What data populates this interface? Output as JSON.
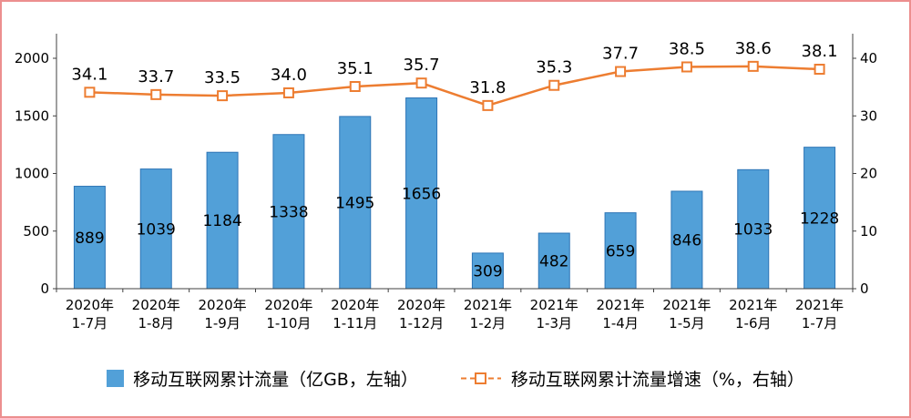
{
  "frame_color": "#ec8f8f",
  "chart_data": {
    "type": "bar+line",
    "title": "",
    "categories": [
      [
        "2020年",
        "1-7月"
      ],
      [
        "2020年",
        "1-8月"
      ],
      [
        "2020年",
        "1-9月"
      ],
      [
        "2020年",
        "1-10月"
      ],
      [
        "2020年",
        "1-11月"
      ],
      [
        "2020年",
        "1-12月"
      ],
      [
        "2021年",
        "1-2月"
      ],
      [
        "2021年",
        "1-3月"
      ],
      [
        "2021年",
        "1-4月"
      ],
      [
        "2021年",
        "1-5月"
      ],
      [
        "2021年",
        "1-6月"
      ],
      [
        "2021年",
        "1-7月"
      ]
    ],
    "series": [
      {
        "name": "移动互联网累计流量（亿GB，左轴）",
        "type": "bar",
        "axis": "left",
        "values": [
          889,
          1039,
          1184,
          1338,
          1495,
          1656,
          309,
          482,
          659,
          846,
          1033,
          1228
        ],
        "value_labels": [
          "889",
          "1039",
          "1184",
          "1338",
          "1495",
          "1656",
          "309",
          "482",
          "659",
          "846",
          "1033",
          "1228"
        ],
        "color": "#52A0D8",
        "border_color": "#2E75B6"
      },
      {
        "name": "移动互联网累计流量增速（%，右轴）",
        "type": "line",
        "axis": "right",
        "values": [
          34.1,
          33.7,
          33.5,
          34.0,
          35.1,
          35.7,
          31.8,
          35.3,
          37.7,
          38.5,
          38.6,
          38.1
        ],
        "value_labels": [
          "34.1",
          "33.7",
          "33.5",
          "34.0",
          "35.1",
          "35.7",
          "31.8",
          "35.3",
          "37.7",
          "38.5",
          "38.6",
          "38.1"
        ],
        "color": "#ED7D31",
        "marker_fill": "#FFFFFF"
      }
    ],
    "left_axis": {
      "min": 0,
      "max": 2000,
      "ticks": [
        0,
        500,
        1000,
        1500,
        2000
      ]
    },
    "right_axis": {
      "min": 0,
      "max": 40,
      "ticks": [
        0,
        10,
        20,
        30,
        40
      ]
    },
    "legend_position": "bottom",
    "grid": false,
    "axis_color": "#404040",
    "text_color": "#000000"
  }
}
